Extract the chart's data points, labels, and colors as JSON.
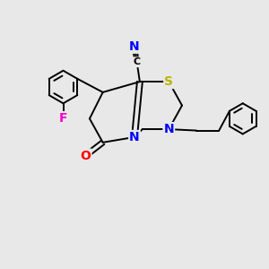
{
  "background_color": "#e8e8e8",
  "figsize": [
    3.0,
    3.0
  ],
  "dpi": 100,
  "atom_colors": {
    "S": "#b8b800",
    "N": "#0000ff",
    "O": "#ff0000",
    "F": "#ff00cc",
    "C": "#000000"
  },
  "line_width": 1.4
}
